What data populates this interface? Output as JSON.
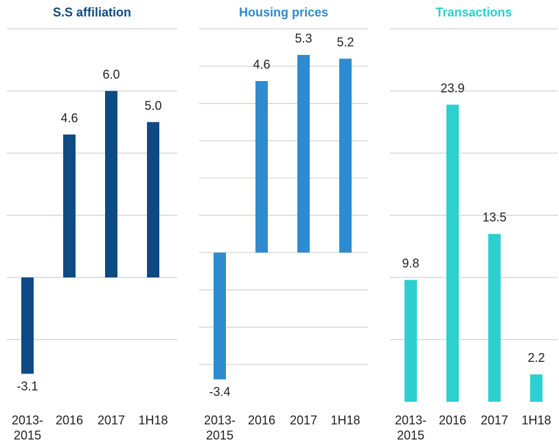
{
  "chart_data": [
    {
      "type": "bar",
      "title": "S.S affiliation",
      "title_color": "#0e4a84",
      "categories": [
        "2013-\n2015",
        "2016",
        "2017",
        "1H18"
      ],
      "values": [
        -3.1,
        4.6,
        6.0,
        5.0
      ],
      "value_labels": [
        "-3.1",
        "4.6",
        "6.0",
        "5.0"
      ],
      "color": "#0e4a84",
      "ylim": [
        -4,
        8
      ],
      "yticks": [
        -2,
        0,
        2,
        4,
        6,
        8
      ],
      "grid": true
    },
    {
      "type": "bar",
      "title": "Housing prices",
      "title_color": "#2e8bd0",
      "categories": [
        "2013-\n2015",
        "2016",
        "2017",
        "1H18"
      ],
      "values": [
        -3.4,
        4.6,
        5.3,
        5.2
      ],
      "value_labels": [
        "-3.4",
        "4.6",
        "5.3",
        "5.2"
      ],
      "color": "#2e8bd0",
      "ylim": [
        -4,
        6
      ],
      "yticks": [
        -3,
        -2,
        -1,
        0,
        1,
        2,
        3,
        4,
        5,
        6
      ],
      "grid": true
    },
    {
      "type": "bar",
      "title": "Transactions",
      "title_color": "#2ecfcf",
      "categories": [
        "2013-\n2015",
        "2016",
        "2017",
        "1H18"
      ],
      "values": [
        9.8,
        23.9,
        13.5,
        2.2
      ],
      "value_labels": [
        "9.8",
        "23.9",
        "13.5",
        "2.2"
      ],
      "color": "#2ecfcf",
      "ylim": [
        0,
        30
      ],
      "yticks": [
        5,
        10,
        15,
        20,
        25,
        30
      ],
      "grid": true
    }
  ]
}
